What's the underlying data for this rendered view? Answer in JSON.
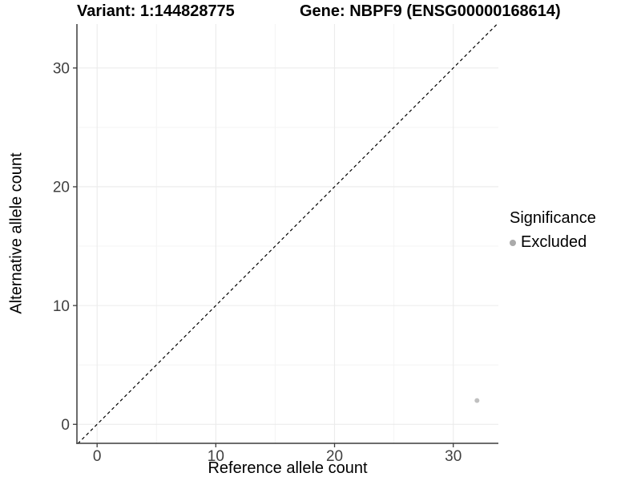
{
  "chart_data": {
    "type": "scatter",
    "title_left": "Variant: 1:144828775",
    "title_right": "Gene: NBPF9 (ENSG00000168614)",
    "xlabel": "Reference allele count",
    "ylabel": "Alternative allele count",
    "xlim": [
      -1.7,
      33.8
    ],
    "ylim": [
      -1.6,
      33.7
    ],
    "xticks": [
      0,
      10,
      20,
      30
    ],
    "yticks": [
      0,
      10,
      20,
      30
    ],
    "xticks_minor": [
      5,
      15,
      25
    ],
    "yticks_minor": [
      5,
      15,
      25
    ],
    "grid": "major+minor",
    "reference_line": {
      "type": "identity",
      "equation": "y = x",
      "style": "dashed",
      "color": "#000000"
    },
    "series": [
      {
        "name": "Excluded",
        "color": "#b0b0b0",
        "points": [
          {
            "x": 32,
            "y": 2
          }
        ]
      }
    ],
    "legend": {
      "title": "Significance",
      "position": "right",
      "items": [
        {
          "label": "Excluded",
          "color": "#aaaaaa"
        }
      ]
    }
  },
  "colors": {
    "background": "#ffffff",
    "grid_major": "#ebebeb",
    "grid_minor": "#f4f4f4",
    "axis_line": "#3c3c3c",
    "tick_mark": "#3c3c3c",
    "tick_text": "#404040",
    "title_text": "#000000"
  }
}
